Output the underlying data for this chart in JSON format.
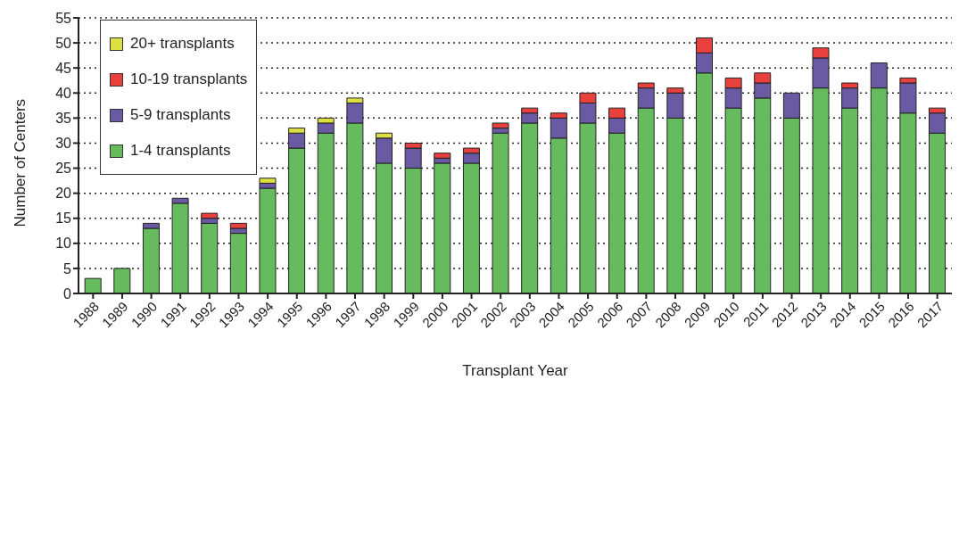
{
  "chart_data": {
    "type": "bar",
    "stacked": true,
    "xlabel": "Transplant Year",
    "ylabel": "Number of Centers",
    "categories": [
      "1988",
      "1989",
      "1990",
      "1991",
      "1992",
      "1993",
      "1994",
      "1995",
      "1996",
      "1997",
      "1998",
      "1999",
      "2000",
      "2001",
      "2002",
      "2003",
      "2004",
      "2005",
      "2006",
      "2007",
      "2008",
      "2009",
      "2010",
      "2011",
      "2012",
      "2013",
      "2014",
      "2015",
      "2016",
      "2017"
    ],
    "series": [
      {
        "name": "1-4 transplants",
        "color": "#66bb5f",
        "values": [
          3,
          5,
          13,
          18,
          14,
          12,
          21,
          29,
          32,
          34,
          26,
          25,
          26,
          26,
          32,
          34,
          31,
          34,
          32,
          37,
          35,
          44,
          37,
          39,
          35,
          41,
          37,
          41,
          36,
          32
        ]
      },
      {
        "name": "5-9 transplants",
        "color": "#6a5aa3",
        "values": [
          0,
          0,
          1,
          1,
          1,
          1,
          1,
          3,
          2,
          4,
          5,
          4,
          1,
          2,
          1,
          2,
          4,
          4,
          3,
          4,
          5,
          4,
          4,
          3,
          5,
          6,
          4,
          5,
          6,
          4
        ]
      },
      {
        "name": "10-19 transplants",
        "color": "#e8403d",
        "values": [
          0,
          0,
          0,
          0,
          1,
          1,
          0,
          0,
          0,
          0,
          0,
          1,
          1,
          1,
          1,
          1,
          1,
          2,
          2,
          1,
          1,
          3,
          2,
          2,
          0,
          2,
          1,
          0,
          1,
          1
        ]
      },
      {
        "name": "20+ transplants",
        "color": "#dde045",
        "values": [
          0,
          0,
          0,
          0,
          0,
          0,
          1,
          1,
          1,
          1,
          1,
          0,
          0,
          0,
          0,
          0,
          0,
          0,
          0,
          0,
          0,
          0,
          0,
          0,
          0,
          0,
          0,
          0,
          0,
          0
        ]
      }
    ],
    "ylim": [
      0,
      55
    ],
    "yticks": [
      0,
      5,
      10,
      15,
      20,
      25,
      30,
      35,
      40,
      45,
      50,
      55
    ],
    "grid": "y",
    "legend": "top left"
  }
}
